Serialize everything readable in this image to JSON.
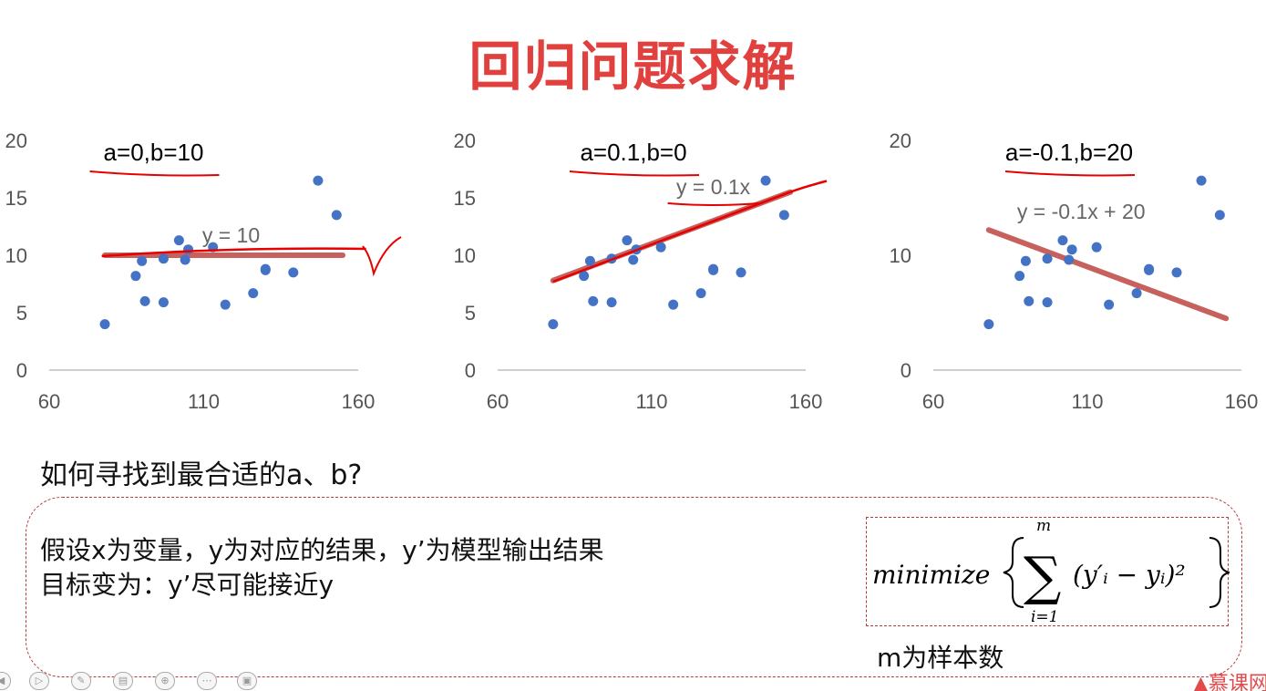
{
  "slide": {
    "title": "回归问题求解",
    "question": "如何寻找到最合适的a、b?",
    "desc_line1": "假设x为变量，y为对应的结果，y’为模型输出结果",
    "desc_line2": "目标变为：y’尽可能接近y",
    "formula": {
      "func": "minimize",
      "upper": "m",
      "lower": "i=1",
      "term": "(y′ᵢ − yᵢ)²"
    },
    "note": "m为样本数",
    "brand": "慕课网"
  },
  "colors": {
    "title": "#e0413f",
    "points": "#4472c4",
    "fit_line": "#c0504d",
    "marker": "#e60000"
  },
  "chart_data": [
    {
      "type": "scatter",
      "annotation": "a=0,b=10",
      "equation": "y = 10",
      "line": {
        "a": 0,
        "b": 10,
        "x_range": [
          78,
          155
        ]
      },
      "check_mark": true,
      "xlim": [
        60,
        160
      ],
      "ylim": [
        0,
        20
      ],
      "x_ticks": [
        "60",
        "110",
        "160"
      ],
      "y_ticks": [
        "0",
        "5",
        "10",
        "15",
        "20"
      ],
      "points": [
        [
          78,
          4
        ],
        [
          88,
          8.2
        ],
        [
          90,
          9.5
        ],
        [
          91,
          6
        ],
        [
          97,
          9.7
        ],
        [
          97,
          5.9
        ],
        [
          102,
          11.3
        ],
        [
          104,
          9.6
        ],
        [
          105,
          10.5
        ],
        [
          113,
          10.7
        ],
        [
          117,
          5.7
        ],
        [
          126,
          6.7
        ],
        [
          130,
          8.7
        ],
        [
          130,
          8.8
        ],
        [
          139,
          8.5
        ],
        [
          147,
          16.5
        ],
        [
          153,
          13.5
        ]
      ]
    },
    {
      "type": "scatter",
      "annotation": "a=0.1,b=0",
      "equation": "y = 0.1x",
      "line": {
        "a": 0.1,
        "b": 0,
        "x_range": [
          78,
          155
        ]
      },
      "check_mark": false,
      "xlim": [
        60,
        160
      ],
      "ylim": [
        0,
        20
      ],
      "x_ticks": [
        "60",
        "110",
        "160"
      ],
      "y_ticks": [
        "0",
        "5",
        "10",
        "15",
        "20"
      ],
      "points": [
        [
          78,
          4
        ],
        [
          88,
          8.2
        ],
        [
          90,
          9.5
        ],
        [
          91,
          6
        ],
        [
          97,
          9.7
        ],
        [
          97,
          5.9
        ],
        [
          102,
          11.3
        ],
        [
          104,
          9.6
        ],
        [
          105,
          10.5
        ],
        [
          113,
          10.7
        ],
        [
          117,
          5.7
        ],
        [
          126,
          6.7
        ],
        [
          130,
          8.7
        ],
        [
          130,
          8.8
        ],
        [
          139,
          8.5
        ],
        [
          147,
          16.5
        ],
        [
          153,
          13.5
        ]
      ]
    },
    {
      "type": "scatter",
      "annotation": "a=-0.1,b=20",
      "equation": "y = -0.1x + 20",
      "line": {
        "a": -0.1,
        "b": 20,
        "x_range": [
          78,
          155
        ]
      },
      "check_mark": false,
      "xlim": [
        60,
        160
      ],
      "ylim": [
        0,
        20
      ],
      "x_ticks": [
        "60",
        "110",
        "160"
      ],
      "y_ticks": [
        "0",
        "10",
        "20"
      ],
      "points": [
        [
          78,
          4
        ],
        [
          88,
          8.2
        ],
        [
          90,
          9.5
        ],
        [
          91,
          6
        ],
        [
          97,
          9.7
        ],
        [
          97,
          5.9
        ],
        [
          102,
          11.3
        ],
        [
          104,
          9.6
        ],
        [
          105,
          10.5
        ],
        [
          113,
          10.7
        ],
        [
          117,
          5.7
        ],
        [
          126,
          6.7
        ],
        [
          130,
          8.7
        ],
        [
          130,
          8.8
        ],
        [
          139,
          8.5
        ],
        [
          147,
          16.5
        ],
        [
          153,
          13.5
        ]
      ]
    }
  ]
}
